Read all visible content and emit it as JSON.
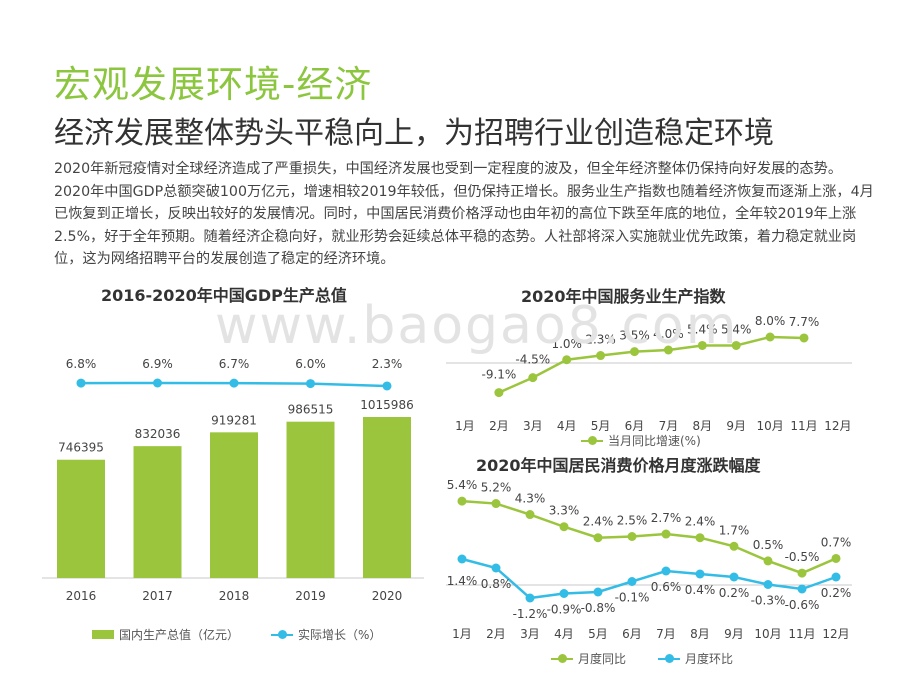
{
  "header": {
    "title": "宏观发展环境-经济",
    "subtitle": "经济发展整体势头平稳向上，为招聘行业创造稳定环境",
    "paragraph": "2020年新冠疫情对全球经济造成了严重损失，中国经济发展也受到一定程度的波及，但全年经济整体仍保持向好发展的态势。2020年中国GDP总额突破100万亿元，增速相较2019年较低，但仍保持正增长。服务业生产指数也随着经济恢复而逐渐上涨，4月已恢复到正增长，反映出较好的发展情况。同时，中国居民消费价格浮动也由年初的高位下跌至年底的地位，全年较2019年上涨2.5%，好于全年预期。随着经济企稳向好，就业形势会延续总体平稳的态势。人社部将深入实施就业优先政策，着力稳定就业岗位，这为网络招聘平台的发展创造了稳定的经济环境。"
  },
  "watermark": "www.baogao8.com",
  "colors": {
    "green": "#9bc53d",
    "blue": "#33bce6",
    "title_green": "#8cc63f"
  },
  "chart_data": [
    {
      "type": "bar",
      "title": "2016-2020年中国GDP生产总值",
      "categories": [
        "2016",
        "2017",
        "2018",
        "2019",
        "2020"
      ],
      "series": [
        {
          "name": "国内生产总值（亿元）",
          "type": "bar",
          "values": [
            746395,
            832036,
            919281,
            986515,
            1015986
          ],
          "labels": [
            "746395",
            "832036",
            "919281",
            "986515",
            "1015986"
          ]
        },
        {
          "name": "实际增长（%）",
          "type": "line",
          "values": [
            6.8,
            6.9,
            6.7,
            6.0,
            2.3
          ],
          "labels": [
            "6.8%",
            "6.9%",
            "6.7%",
            "6.0%",
            "2.3%"
          ]
        }
      ],
      "legend_position": "bottom",
      "grid": false
    },
    {
      "type": "line",
      "title": "2020年中国服务业生产指数",
      "categories": [
        "1月",
        "2月",
        "3月",
        "4月",
        "5月",
        "6月",
        "7月",
        "8月",
        "9月",
        "10月",
        "11月",
        "12月"
      ],
      "series": [
        {
          "name": "当月同比增速(%)",
          "values": [
            null,
            -9.1,
            -4.5,
            1.0,
            2.3,
            3.5,
            4.0,
            5.4,
            5.4,
            8.0,
            7.7,
            null
          ],
          "labels": [
            "",
            "-9.1%",
            "-4.5%",
            "1.0%",
            "2.3%",
            "3.5%",
            "4.0%",
            "5.4%",
            "5.4%",
            "8.0%",
            "7.7%",
            ""
          ]
        }
      ],
      "legend_position": "bottom",
      "grid": false
    },
    {
      "type": "line",
      "title": "2020年中国居民消费价格月度涨跌幅度",
      "categories": [
        "1月",
        "2月",
        "3月",
        "4月",
        "5月",
        "6月",
        "7月",
        "8月",
        "9月",
        "10月",
        "11月",
        "12月"
      ],
      "series": [
        {
          "name": "月度同比",
          "values": [
            5.4,
            5.2,
            4.3,
            3.3,
            2.4,
            2.5,
            2.7,
            2.4,
            1.7,
            0.5,
            -0.5,
            0.7
          ],
          "labels": [
            "5.4%",
            "5.2%",
            "4.3%",
            "3.3%",
            "2.4%",
            "2.5%",
            "2.7%",
            "2.4%",
            "1.7%",
            "0.5%",
            "-0.5%",
            "0.7%"
          ]
        },
        {
          "name": "月度环比",
          "values": [
            1.4,
            0.8,
            -1.2,
            -0.9,
            -0.8,
            -0.1,
            0.6,
            0.4,
            0.2,
            -0.3,
            -0.6,
            0.2
          ],
          "labels": [
            "1.4%",
            "0.8%",
            "-1.2%",
            "-0.9%",
            "-0.8%",
            "-0.1%",
            "0.6%",
            "0.4%",
            "0.2%",
            "-0.3%",
            "-0.6%",
            "0.2%"
          ]
        }
      ],
      "legend_position": "bottom",
      "grid": false
    }
  ]
}
